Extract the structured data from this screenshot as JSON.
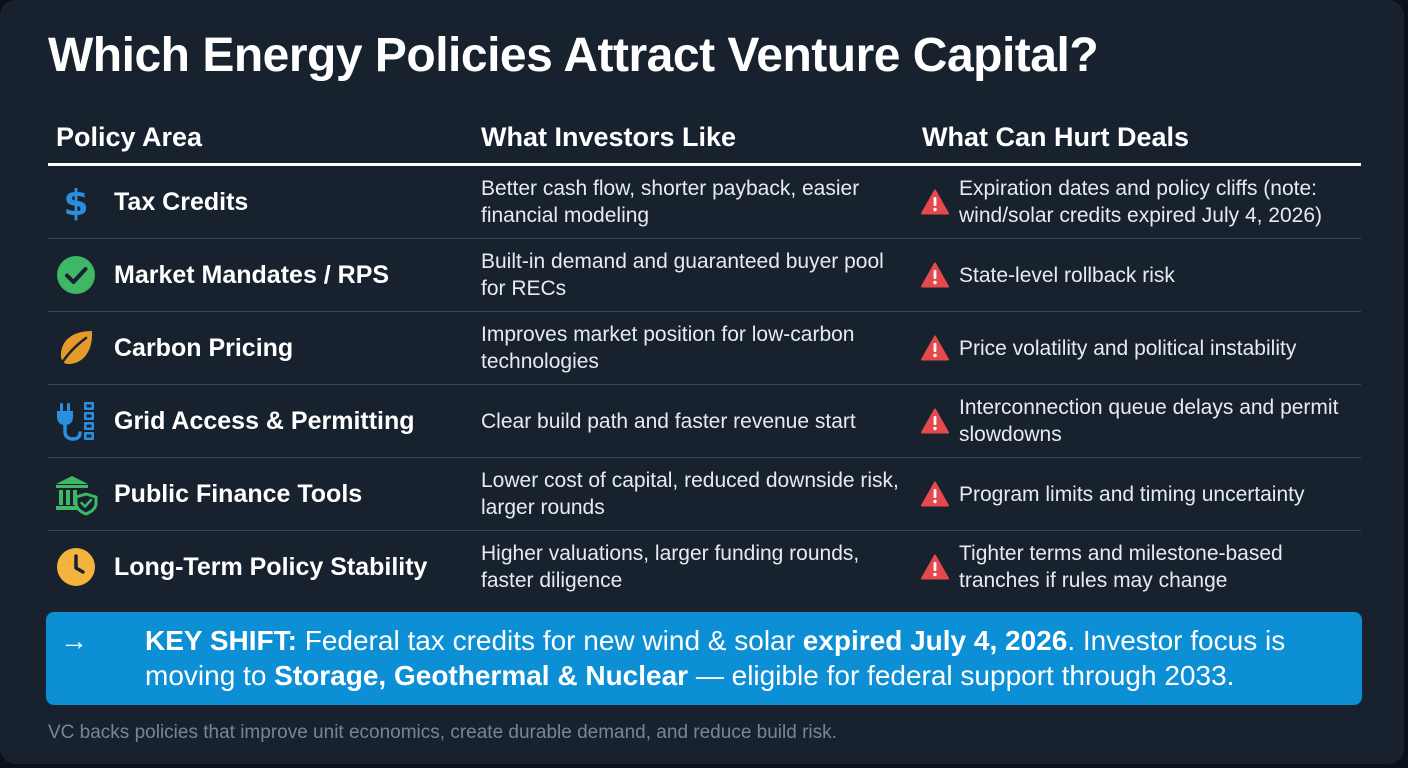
{
  "title": "Which Energy Policies Attract Venture Capital?",
  "table": {
    "headers": {
      "policy_area": "Policy Area",
      "investors_like": "What Investors Like",
      "hurt_deals": "What Can Hurt Deals"
    },
    "rows": [
      {
        "icon": "dollar-icon",
        "area": "Tax Credits",
        "like": "Better cash flow, shorter payback, easier financial modeling",
        "hurt": "Expiration dates and policy cliffs (note: wind/solar credits expired July 4, 2026)"
      },
      {
        "icon": "check-circle-icon",
        "area": "Market Mandates / RPS",
        "like": "Built-in demand and guaranteed buyer pool for RECs",
        "hurt": "State-level rollback risk"
      },
      {
        "icon": "leaf-icon",
        "area": "Carbon Pricing",
        "like": "Improves market position for low-carbon technologies",
        "hurt": "Price volatility and political instability"
      },
      {
        "icon": "plug-grid-icon",
        "area": "Grid Access & Permitting",
        "like": "Clear build path and faster revenue start",
        "hurt": "Interconnection queue delays and permit slowdowns"
      },
      {
        "icon": "bank-shield-icon",
        "area": "Public Finance Tools",
        "like": "Lower cost of capital, reduced downside risk, larger rounds",
        "hurt": "Program limits and timing uncertainty"
      },
      {
        "icon": "clock-icon",
        "area": "Long-Term Policy Stability",
        "like": "Higher valuations, larger funding rounds, faster diligence",
        "hurt": "Tighter terms and milestone-based tranches if rules may change"
      }
    ]
  },
  "banner": {
    "arrow": "→",
    "label": "KEY SHIFT:",
    "text1": " Federal tax credits for new wind & solar ",
    "bold1": "expired July 4, 2026",
    "text2": ". Investor focus is",
    "text3": "moving to ",
    "bold2": "Storage, Geothermal & Nuclear",
    "text4": " — eligible for federal support through 2033."
  },
  "footer": "VC backs policies that improve unit economics, create durable demand, and reduce build risk.",
  "colors": {
    "background": "#18222f",
    "banner": "#0d8fd6",
    "warning": "#e5484d",
    "dollar": "#2b8fe0",
    "check": "#3fb866",
    "leaf": "#e79a2c",
    "plug": "#2b8fe0",
    "bank": "#3fb866",
    "clock": "#f2b43c"
  }
}
